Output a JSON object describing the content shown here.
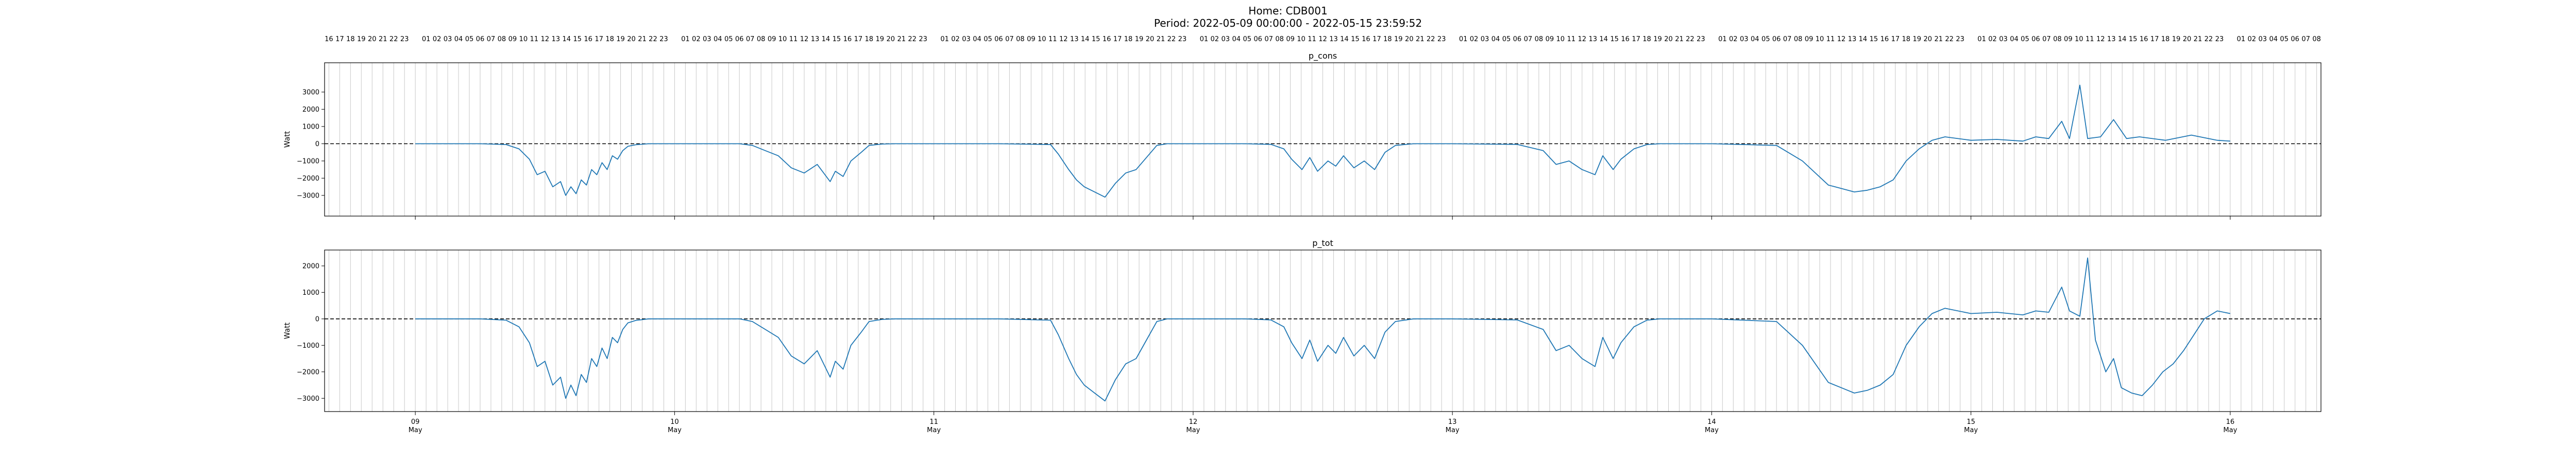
{
  "header": {
    "line1": "Home: CDB001",
    "line2": "Period: 2022-05-09 00:00:00 - 2022-05-15 23:59:52"
  },
  "chart_data": [
    {
      "type": "line",
      "title": "p_cons",
      "ylabel": "Watt",
      "ylim": [
        -4200,
        4700
      ],
      "yticks": [
        -3000,
        -2000,
        -1000,
        0,
        1000,
        2000,
        3000
      ],
      "xlim": [
        -0.35,
        7.35
      ],
      "zero_line": true,
      "grid": "vertical hourly",
      "series": [
        {
          "color": "#1f77b4",
          "x": [
            0.0,
            0.25,
            0.35,
            0.4,
            0.44,
            0.47,
            0.5,
            0.53,
            0.56,
            0.58,
            0.6,
            0.62,
            0.64,
            0.66,
            0.68,
            0.7,
            0.72,
            0.74,
            0.76,
            0.78,
            0.8,
            0.82,
            0.85,
            0.9,
            1.0,
            1.25,
            1.3,
            1.35,
            1.4,
            1.45,
            1.5,
            1.55,
            1.6,
            1.62,
            1.65,
            1.68,
            1.72,
            1.75,
            1.8,
            1.85,
            2.0,
            2.25,
            2.45,
            2.48,
            2.52,
            2.55,
            2.58,
            2.62,
            2.66,
            2.7,
            2.74,
            2.78,
            2.82,
            2.86,
            2.9,
            3.0,
            3.2,
            3.3,
            3.35,
            3.38,
            3.42,
            3.45,
            3.48,
            3.52,
            3.55,
            3.58,
            3.62,
            3.66,
            3.7,
            3.74,
            3.78,
            3.85,
            4.0,
            4.25,
            4.35,
            4.4,
            4.45,
            4.5,
            4.55,
            4.58,
            4.62,
            4.65,
            4.7,
            4.75,
            4.8,
            4.85,
            5.0,
            5.25,
            5.35,
            5.45,
            5.5,
            5.55,
            5.6,
            5.65,
            5.7,
            5.75,
            5.8,
            5.85,
            5.9,
            6.0,
            6.1,
            6.2,
            6.25,
            6.3,
            6.35,
            6.38,
            6.42,
            6.45,
            6.5,
            6.55,
            6.6,
            6.65,
            6.75,
            6.85,
            6.95,
            7.0
          ],
          "y": [
            0,
            0,
            -50,
            -300,
            -900,
            -1800,
            -1600,
            -2500,
            -2200,
            -3000,
            -2500,
            -2900,
            -2100,
            -2400,
            -1500,
            -1800,
            -1100,
            -1500,
            -700,
            -900,
            -400,
            -150,
            -60,
            0,
            0,
            0,
            -100,
            -400,
            -700,
            -1400,
            -1700,
            -1200,
            -2200,
            -1600,
            -1900,
            -1000,
            -500,
            -100,
            -20,
            0,
            0,
            0,
            -50,
            -600,
            -1500,
            -2100,
            -2500,
            -2800,
            -3100,
            -2300,
            -1700,
            -1500,
            -800,
            -100,
            0,
            0,
            0,
            -40,
            -300,
            -900,
            -1500,
            -800,
            -1600,
            -1000,
            -1300,
            -700,
            -1400,
            -1000,
            -1500,
            -500,
            -100,
            0,
            0,
            -40,
            -400,
            -1200,
            -1000,
            -1500,
            -1800,
            -700,
            -1500,
            -900,
            -300,
            -50,
            0,
            0,
            0,
            -100,
            -1000,
            -2400,
            -2600,
            -2800,
            -2700,
            -2500,
            -2100,
            -1000,
            -300,
            200,
            400,
            200,
            250,
            150,
            400,
            300,
            1300,
            300,
            3400,
            300,
            400,
            1400,
            300,
            400,
            200,
            500,
            200,
            150
          ]
        }
      ]
    },
    {
      "type": "line",
      "title": "p_tot",
      "ylabel": "Watt",
      "ylim": [
        -3500,
        2600
      ],
      "yticks": [
        -3000,
        -2000,
        -1000,
        0,
        1000,
        2000
      ],
      "xlim": [
        -0.35,
        7.35
      ],
      "zero_line": true,
      "grid": "vertical hourly",
      "series": [
        {
          "color": "#1f77b4",
          "x": [
            0.0,
            0.25,
            0.35,
            0.4,
            0.44,
            0.47,
            0.5,
            0.53,
            0.56,
            0.58,
            0.6,
            0.62,
            0.64,
            0.66,
            0.68,
            0.7,
            0.72,
            0.74,
            0.76,
            0.78,
            0.8,
            0.82,
            0.85,
            0.9,
            1.0,
            1.25,
            1.3,
            1.35,
            1.4,
            1.45,
            1.5,
            1.55,
            1.6,
            1.62,
            1.65,
            1.68,
            1.72,
            1.75,
            1.8,
            1.85,
            2.0,
            2.25,
            2.45,
            2.48,
            2.52,
            2.55,
            2.58,
            2.62,
            2.66,
            2.7,
            2.74,
            2.78,
            2.82,
            2.86,
            2.9,
            3.0,
            3.2,
            3.3,
            3.35,
            3.38,
            3.42,
            3.45,
            3.48,
            3.52,
            3.55,
            3.58,
            3.62,
            3.66,
            3.7,
            3.74,
            3.78,
            3.85,
            4.0,
            4.25,
            4.35,
            4.4,
            4.45,
            4.5,
            4.55,
            4.58,
            4.62,
            4.65,
            4.7,
            4.75,
            4.8,
            4.85,
            5.0,
            5.25,
            5.35,
            5.45,
            5.5,
            5.55,
            5.6,
            5.65,
            5.7,
            5.75,
            5.8,
            5.85,
            5.9,
            6.0,
            6.1,
            6.2,
            6.25,
            6.3,
            6.35,
            6.38,
            6.42,
            6.45,
            6.48,
            6.52,
            6.55,
            6.58,
            6.62,
            6.66,
            6.7,
            6.74,
            6.78,
            6.82,
            6.86,
            6.9,
            6.95,
            7.0
          ],
          "y": [
            0,
            0,
            -50,
            -300,
            -900,
            -1800,
            -1600,
            -2500,
            -2200,
            -3000,
            -2500,
            -2900,
            -2100,
            -2400,
            -1500,
            -1800,
            -1100,
            -1500,
            -700,
            -900,
            -400,
            -150,
            -60,
            0,
            0,
            0,
            -100,
            -400,
            -700,
            -1400,
            -1700,
            -1200,
            -2200,
            -1600,
            -1900,
            -1000,
            -500,
            -100,
            -20,
            0,
            0,
            0,
            -50,
            -600,
            -1500,
            -2100,
            -2500,
            -2800,
            -3100,
            -2300,
            -1700,
            -1500,
            -800,
            -100,
            0,
            0,
            0,
            -40,
            -300,
            -900,
            -1500,
            -800,
            -1600,
            -1000,
            -1300,
            -700,
            -1400,
            -1000,
            -1500,
            -500,
            -100,
            0,
            0,
            -40,
            -400,
            -1200,
            -1000,
            -1500,
            -1800,
            -700,
            -1500,
            -900,
            -300,
            -50,
            0,
            0,
            0,
            -100,
            -1000,
            -2400,
            -2600,
            -2800,
            -2700,
            -2500,
            -2100,
            -1000,
            -300,
            200,
            400,
            200,
            250,
            150,
            300,
            250,
            1200,
            300,
            100,
            2300,
            -800,
            -2000,
            -1500,
            -2600,
            -2800,
            -2900,
            -2500,
            -2000,
            -1700,
            -1200,
            -600,
            0,
            300,
            200
          ]
        }
      ]
    }
  ],
  "x_axis": {
    "day_ticks": [
      {
        "x": 0,
        "label": "09",
        "month": "May"
      },
      {
        "x": 1,
        "label": "10",
        "month": "May"
      },
      {
        "x": 2,
        "label": "11",
        "month": "May"
      },
      {
        "x": 3,
        "label": "12",
        "month": "May"
      },
      {
        "x": 4,
        "label": "13",
        "month": "May"
      },
      {
        "x": 5,
        "label": "14",
        "month": "May"
      },
      {
        "x": 6,
        "label": "15",
        "month": "May"
      },
      {
        "x": 7,
        "label": "16",
        "month": "May"
      }
    ]
  }
}
